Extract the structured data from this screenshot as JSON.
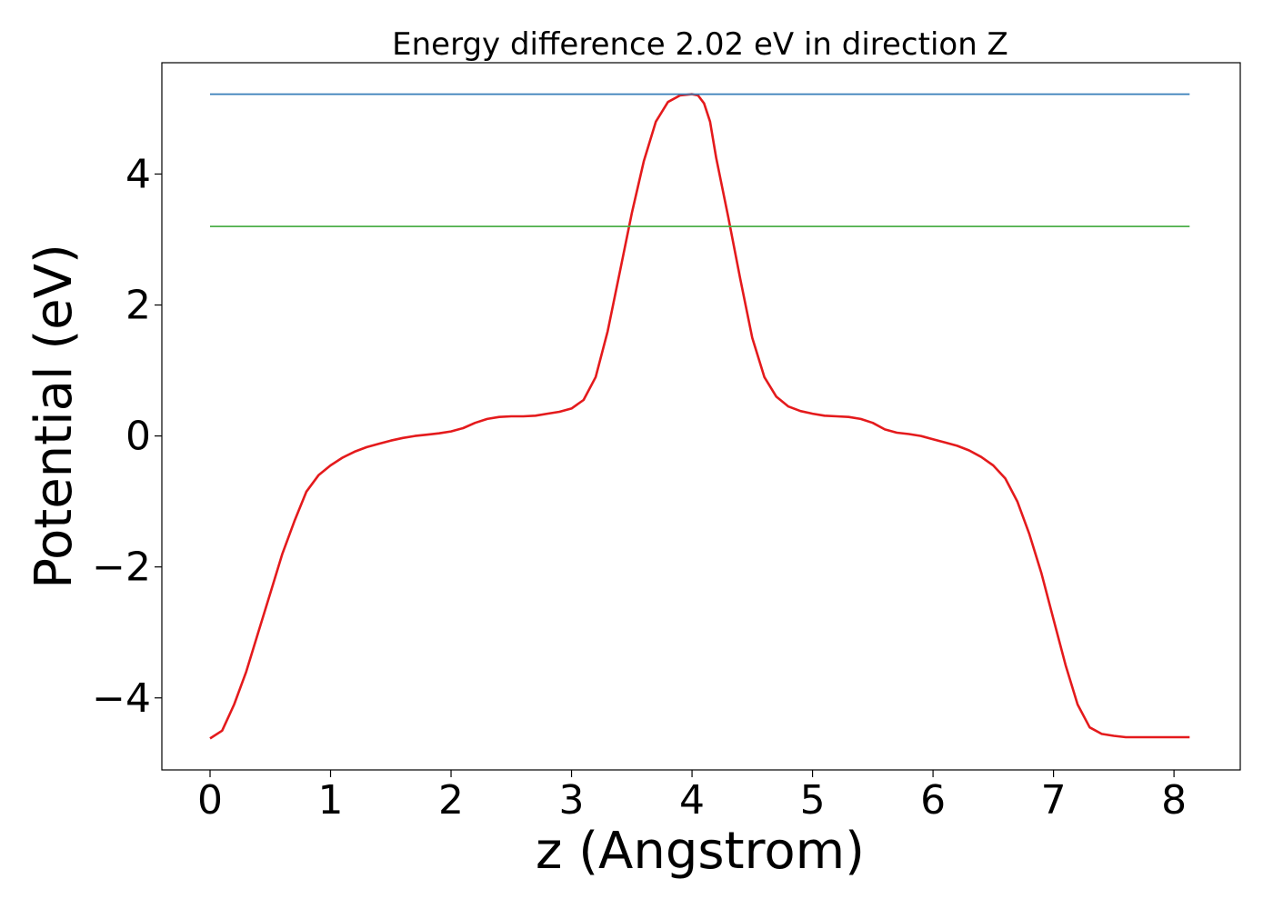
{
  "chart_data": {
    "type": "line",
    "title": "Energy difference 2.02 eV in direction Z",
    "xlabel": "z (Angstrom)",
    "ylabel": "Potential (eV)",
    "xlim": [
      -0.4,
      8.55
    ],
    "ylim": [
      -5.1,
      5.7
    ],
    "xticks": [
      0,
      1,
      2,
      3,
      4,
      5,
      6,
      7,
      8
    ],
    "xtick_labels": [
      "0",
      "1",
      "2",
      "3",
      "4",
      "5",
      "6",
      "7",
      "8"
    ],
    "yticks": [
      -4,
      -2,
      0,
      2,
      4
    ],
    "ytick_labels": [
      "−4",
      "−2",
      "0",
      "2",
      "4"
    ],
    "grid": false,
    "legend": "none",
    "series": [
      {
        "color": "#e41a1c",
        "x": [
          0.0,
          0.1,
          0.2,
          0.3,
          0.4,
          0.5,
          0.6,
          0.7,
          0.8,
          0.9,
          1.0,
          1.1,
          1.2,
          1.3,
          1.4,
          1.5,
          1.6,
          1.7,
          1.8,
          1.9,
          2.0,
          2.1,
          2.2,
          2.3,
          2.4,
          2.5,
          2.6,
          2.7,
          2.8,
          2.9,
          3.0,
          3.1,
          3.2,
          3.3,
          3.4,
          3.5,
          3.6,
          3.7,
          3.8,
          3.9,
          4.0,
          4.05,
          4.1,
          4.15,
          4.2,
          4.3,
          4.4,
          4.5,
          4.6,
          4.7,
          4.8,
          4.9,
          5.0,
          5.1,
          5.2,
          5.3,
          5.4,
          5.5,
          5.6,
          5.7,
          5.8,
          5.9,
          6.0,
          6.1,
          6.2,
          6.3,
          6.4,
          6.5,
          6.6,
          6.7,
          6.8,
          6.9,
          7.0,
          7.1,
          7.2,
          7.3,
          7.4,
          7.5,
          7.6,
          7.7,
          7.8,
          7.9,
          8.0,
          8.13
        ],
        "values": [
          -4.62,
          -4.5,
          -4.1,
          -3.6,
          -3.0,
          -2.4,
          -1.8,
          -1.3,
          -0.85,
          -0.6,
          -0.45,
          -0.33,
          -0.24,
          -0.17,
          -0.12,
          -0.07,
          -0.03,
          0.0,
          0.02,
          0.04,
          0.07,
          0.12,
          0.2,
          0.26,
          0.29,
          0.3,
          0.3,
          0.31,
          0.34,
          0.37,
          0.42,
          0.55,
          0.9,
          1.6,
          2.5,
          3.4,
          4.2,
          4.8,
          5.1,
          5.2,
          5.22,
          5.2,
          5.08,
          4.8,
          4.25,
          3.35,
          2.4,
          1.5,
          0.9,
          0.6,
          0.45,
          0.38,
          0.34,
          0.31,
          0.3,
          0.29,
          0.26,
          0.2,
          0.1,
          0.05,
          0.03,
          0.0,
          -0.05,
          -0.1,
          -0.15,
          -0.22,
          -0.32,
          -0.45,
          -0.65,
          -1.0,
          -1.5,
          -2.1,
          -2.8,
          -3.5,
          -4.1,
          -4.45,
          -4.55,
          -4.58,
          -4.6,
          -4.6,
          -4.6,
          -4.6,
          -4.6,
          -4.6
        ]
      },
      {
        "color": "#377eb8",
        "x": [
          0.0,
          8.13
        ],
        "values": [
          5.22,
          5.22
        ]
      },
      {
        "color": "#4daf4a",
        "x": [
          0.0,
          8.13
        ],
        "values": [
          3.2,
          3.2
        ]
      }
    ]
  }
}
